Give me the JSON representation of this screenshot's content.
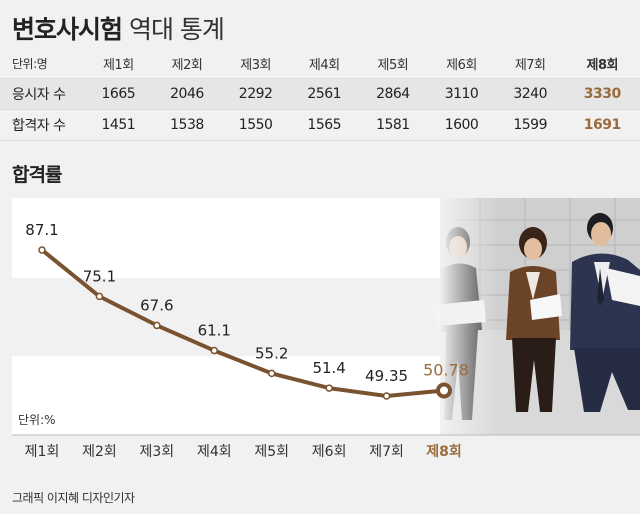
{
  "header": {
    "title_bold": "변호사시험",
    "title_rest": "역대 통계"
  },
  "table": {
    "unit": "단위:명",
    "columns": [
      "제1회",
      "제2회",
      "제3회",
      "제4회",
      "제5회",
      "제6회",
      "제7회",
      "제8회"
    ],
    "rows": [
      {
        "label": "응시자 수",
        "values": [
          "1665",
          "2046",
          "2292",
          "2561",
          "2864",
          "3110",
          "3240",
          "3330"
        ]
      },
      {
        "label": "합격자 수",
        "values": [
          "1451",
          "1538",
          "1550",
          "1565",
          "1581",
          "1600",
          "1599",
          "1691"
        ]
      }
    ]
  },
  "subtitle": "합격률",
  "colors": {
    "accent": "#9a6b3c",
    "line": "#7a5230",
    "band": "#ffffff",
    "bg": "#f1f1f1"
  },
  "chart_data": {
    "type": "line",
    "categories": [
      "제1회",
      "제2회",
      "제3회",
      "제4회",
      "제5회",
      "제6회",
      "제7회",
      "제8회"
    ],
    "values": [
      87.1,
      75.1,
      67.6,
      61.1,
      55.2,
      51.4,
      49.35,
      50.78
    ],
    "labels": [
      "87.1",
      "75.1",
      "67.6",
      "61.1",
      "55.2",
      "51.4",
      "49.35",
      "50.78"
    ],
    "unit_label": "단위:%",
    "highlight_index": 7,
    "ylim": [
      40,
      95
    ],
    "grid": false
  },
  "footer": "그래픽 이지혜 디자인기자"
}
